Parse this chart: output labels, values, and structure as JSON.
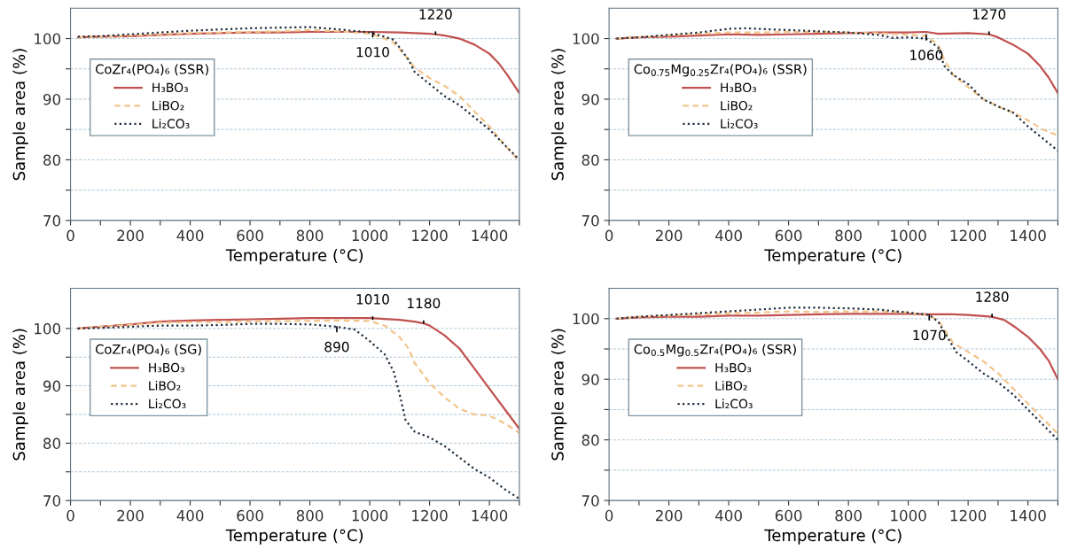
{
  "chart_data": [
    {
      "type": "line",
      "xlabel": "Temperature (°C)",
      "ylabel": "Sample area (%)",
      "legend_title": "CoZr₄(PO₄)₆ (SSR)",
      "legend": "center left",
      "grid": "y",
      "xlim": [
        0,
        1500
      ],
      "ylim": [
        70,
        105
      ],
      "xticks": [
        0,
        {
          "value": 100,
          "label": null
        },
        200,
        {
          "value": 300,
          "label": null
        },
        400,
        {
          "value": 500,
          "label": null
        },
        600,
        {
          "value": 700,
          "label": null
        },
        800,
        {
          "value": 900,
          "label": null
        },
        1000,
        {
          "value": 1100,
          "label": null
        },
        1200,
        {
          "value": 1300,
          "label": null
        },
        1400,
        {
          "value": 1500,
          "label": null
        }
      ],
      "yticks": [
        70,
        {
          "value": 75,
          "label": null
        },
        80,
        {
          "value": 85,
          "label": null
        },
        90,
        {
          "value": 95,
          "label": null
        },
        100
      ],
      "annotations": [
        {
          "text": "1010",
          "x": 1010,
          "y": 101.1
        },
        {
          "text": "1220",
          "x": 1220,
          "y": 100.7
        }
      ],
      "series": [
        {
          "name": "H₃BO₃",
          "color": "#c0504d",
          "line_style": "solid",
          "x": [
            25,
            100,
            200,
            300,
            400,
            500,
            600,
            700,
            800,
            900,
            1000,
            1100,
            1200,
            1220,
            1250,
            1300,
            1350,
            1400,
            1430,
            1460,
            1480,
            1500
          ],
          "values": [
            100.2,
            100.3,
            100.4,
            100.6,
            100.8,
            100.9,
            101.0,
            101.0,
            101.1,
            101.1,
            101.1,
            101.0,
            100.8,
            100.7,
            100.5,
            100.0,
            99.0,
            97.5,
            96.0,
            94.0,
            92.5,
            91.0
          ]
        },
        {
          "name": "LiBO₂",
          "color": "#f2c48a",
          "line_style": "dashed",
          "x": [
            25,
            100,
            200,
            300,
            400,
            500,
            600,
            700,
            800,
            900,
            1000,
            1050,
            1080,
            1100,
            1130,
            1150,
            1200,
            1250,
            1300,
            1350,
            1400,
            1450,
            1500
          ],
          "values": [
            100.2,
            100.3,
            100.5,
            100.7,
            100.9,
            101.0,
            101.1,
            101.2,
            101.4,
            101.2,
            100.8,
            100.0,
            99.3,
            98.3,
            96.5,
            95.2,
            93.5,
            92.2,
            90.5,
            88.0,
            85.5,
            82.5,
            79.8
          ]
        },
        {
          "name": "Li₂CO₃",
          "color": "#1f2d3d",
          "line_style": "dotted",
          "x": [
            25,
            100,
            200,
            300,
            400,
            500,
            600,
            700,
            800,
            900,
            1000,
            1050,
            1080,
            1100,
            1130,
            1150,
            1200,
            1250,
            1300,
            1350,
            1400,
            1450,
            1500
          ],
          "values": [
            100.3,
            100.4,
            100.7,
            101.0,
            101.3,
            101.5,
            101.7,
            101.8,
            101.9,
            101.5,
            101.0,
            100.3,
            99.8,
            98.5,
            96.5,
            94.5,
            92.5,
            90.5,
            89.0,
            87.0,
            85.0,
            82.5,
            80.0
          ]
        }
      ]
    },
    {
      "type": "line",
      "xlabel": "Temperature (°C)",
      "ylabel": "Sample area (%)",
      "legend_title": "Co$_{0.75}$Mg$_{0.25}$Zr₄(PO₄)₆ (SSR)",
      "legend": "center left",
      "grid": "y",
      "xlim": [
        0,
        1500
      ],
      "ylim": [
        70,
        105
      ],
      "xticks": [
        0,
        {
          "value": 100,
          "label": null
        },
        200,
        {
          "value": 300,
          "label": null
        },
        400,
        {
          "value": 500,
          "label": null
        },
        600,
        {
          "value": 700,
          "label": null
        },
        800,
        {
          "value": 900,
          "label": null
        },
        1000,
        {
          "value": 1100,
          "label": null
        },
        1200,
        {
          "value": 1300,
          "label": null
        },
        1400,
        {
          "value": 1500,
          "label": null
        }
      ],
      "yticks": [
        70,
        {
          "value": 75,
          "label": null
        },
        80,
        {
          "value": 85,
          "label": null
        },
        90,
        {
          "value": 95,
          "label": null
        },
        100
      ],
      "annotations": [
        {
          "text": "1060",
          "x": 1060,
          "y": 100.6
        },
        {
          "text": "1270",
          "x": 1270,
          "y": 100.7
        }
      ],
      "series": [
        {
          "name": "H₃BO₃",
          "color": "#c0504d",
          "line_style": "solid",
          "x": [
            25,
            100,
            200,
            300,
            400,
            500,
            600,
            700,
            800,
            900,
            1000,
            1060,
            1100,
            1200,
            1270,
            1300,
            1350,
            1400,
            1440,
            1470,
            1500
          ],
          "values": [
            100.0,
            100.2,
            100.3,
            100.5,
            100.7,
            100.6,
            100.7,
            100.8,
            100.9,
            101.0,
            101.0,
            101.1,
            100.8,
            100.9,
            100.7,
            100.2,
            99.0,
            97.5,
            95.5,
            93.5,
            91.0
          ]
        },
        {
          "name": "LiBO₂",
          "color": "#f2c48a",
          "line_style": "dashed",
          "x": [
            25,
            100,
            200,
            300,
            400,
            500,
            600,
            700,
            800,
            900,
            1000,
            1060,
            1100,
            1120,
            1150,
            1200,
            1250,
            1300,
            1350,
            1400,
            1450,
            1500
          ],
          "values": [
            100.0,
            100.2,
            100.5,
            100.8,
            101.0,
            101.0,
            101.1,
            101.1,
            101.0,
            100.9,
            100.6,
            100.4,
            99.0,
            96.5,
            94.0,
            92.0,
            90.0,
            88.8,
            87.8,
            86.5,
            85.0,
            84.0
          ]
        },
        {
          "name": "Li₂CO₃",
          "color": "#1f2d3d",
          "line_style": "dotted",
          "x": [
            25,
            100,
            200,
            300,
            400,
            450,
            500,
            600,
            700,
            800,
            900,
            950,
            1000,
            1060,
            1100,
            1120,
            1150,
            1200,
            1250,
            1300,
            1350,
            1400,
            1450,
            1500
          ],
          "values": [
            100.0,
            100.2,
            100.6,
            101.0,
            101.6,
            101.7,
            101.6,
            101.4,
            101.2,
            101.0,
            100.6,
            100.1,
            100.2,
            100.0,
            98.5,
            95.5,
            94.0,
            92.5,
            90.0,
            88.8,
            87.8,
            85.5,
            83.5,
            81.5
          ]
        }
      ]
    },
    {
      "type": "line",
      "xlabel": "Temperature (°C)",
      "ylabel": "Sample area (%)",
      "legend_title": "CoZr₄(PO₄)₆ (SG)",
      "legend": "center left",
      "grid": "y",
      "xlim": [
        0,
        1500
      ],
      "ylim": [
        70,
        107
      ],
      "xticks": [
        0,
        {
          "value": 100,
          "label": null
        },
        200,
        {
          "value": 300,
          "label": null
        },
        400,
        {
          "value": 500,
          "label": null
        },
        600,
        {
          "value": 700,
          "label": null
        },
        800,
        {
          "value": 900,
          "label": null
        },
        1000,
        {
          "value": 1100,
          "label": null
        },
        1200,
        {
          "value": 1300,
          "label": null
        },
        1400,
        {
          "value": 1500,
          "label": null
        }
      ],
      "yticks": [
        70,
        {
          "value": 75,
          "label": null
        },
        80,
        {
          "value": 85,
          "label": null
        },
        90,
        {
          "value": 95,
          "label": null
        },
        100
      ],
      "annotations": [
        {
          "text": "890",
          "x": 890,
          "y": 100.3
        },
        {
          "text": "1010",
          "x": 1010,
          "y": 101.6
        },
        {
          "text": "1180",
          "x": 1180,
          "y": 100.9
        }
      ],
      "series": [
        {
          "name": "H₃BO₃",
          "color": "#c0504d",
          "line_style": "solid",
          "x": [
            25,
            100,
            200,
            300,
            400,
            500,
            600,
            700,
            800,
            900,
            1000,
            1100,
            1150,
            1180,
            1200,
            1250,
            1300,
            1350,
            1400,
            1450,
            1500
          ],
          "values": [
            100.0,
            100.3,
            100.7,
            101.2,
            101.4,
            101.5,
            101.6,
            101.7,
            101.8,
            101.8,
            101.8,
            101.5,
            101.2,
            100.9,
            100.5,
            98.8,
            96.5,
            93.0,
            89.5,
            86.0,
            82.5
          ]
        },
        {
          "name": "LiBO₂",
          "color": "#f2c48a",
          "line_style": "dashed",
          "x": [
            25,
            100,
            200,
            300,
            400,
            500,
            600,
            700,
            800,
            900,
            1000,
            1050,
            1100,
            1130,
            1150,
            1200,
            1250,
            1300,
            1350,
            1400,
            1450,
            1500
          ],
          "values": [
            100.0,
            100.3,
            100.6,
            101.0,
            101.1,
            101.1,
            101.2,
            101.3,
            101.3,
            101.4,
            101.3,
            100.5,
            98.5,
            96.5,
            94.0,
            90.5,
            88.0,
            86.0,
            85.0,
            84.8,
            83.5,
            81.8
          ]
        },
        {
          "name": "Li₂CO₃",
          "color": "#1f2d3d",
          "line_style": "dotted",
          "x": [
            25,
            100,
            200,
            300,
            400,
            500,
            600,
            700,
            800,
            890,
            950,
            1000,
            1050,
            1080,
            1100,
            1120,
            1150,
            1200,
            1250,
            1300,
            1350,
            1400,
            1450,
            1500
          ],
          "values": [
            100.0,
            100.1,
            100.3,
            100.5,
            100.5,
            100.6,
            100.8,
            100.8,
            100.7,
            100.3,
            99.8,
            97.8,
            95.5,
            92.5,
            88.5,
            84.0,
            82.0,
            81.0,
            79.5,
            77.5,
            75.5,
            74.0,
            72.0,
            70.3
          ]
        }
      ]
    },
    {
      "type": "line",
      "xlabel": "Temperature (°C)",
      "ylabel": "Sample area (%)",
      "legend_title": "Co$_{0.5}$Mg$_{0.5}$Zr₄(PO₄)₆ (SSR)",
      "legend": "center left",
      "grid": "y",
      "xlim": [
        0,
        1500
      ],
      "ylim": [
        70,
        105
      ],
      "xticks": [
        0,
        {
          "value": 100,
          "label": null
        },
        200,
        {
          "value": 300,
          "label": null
        },
        400,
        {
          "value": 500,
          "label": null
        },
        600,
        {
          "value": 700,
          "label": null
        },
        800,
        {
          "value": 900,
          "label": null
        },
        1000,
        {
          "value": 1100,
          "label": null
        },
        1200,
        {
          "value": 1300,
          "label": null
        },
        1400,
        {
          "value": 1500,
          "label": null
        }
      ],
      "yticks": [
        70,
        {
          "value": 75,
          "label": null
        },
        80,
        {
          "value": 85,
          "label": null
        },
        90,
        {
          "value": 95,
          "label": null
        },
        100
      ],
      "annotations": [
        {
          "text": "1070",
          "x": 1070,
          "y": 100.6
        },
        {
          "text": "1280",
          "x": 1280,
          "y": 100.3
        }
      ],
      "series": [
        {
          "name": "H₃BO₃",
          "color": "#c0504d",
          "line_style": "solid",
          "x": [
            25,
            100,
            200,
            300,
            400,
            500,
            600,
            700,
            800,
            900,
            1000,
            1070,
            1150,
            1200,
            1280,
            1320,
            1360,
            1400,
            1440,
            1470,
            1500
          ],
          "values": [
            100.0,
            100.2,
            100.3,
            100.3,
            100.5,
            100.5,
            100.6,
            100.7,
            100.8,
            100.8,
            100.8,
            100.7,
            100.7,
            100.6,
            100.3,
            99.8,
            98.5,
            97.0,
            95.0,
            93.0,
            90.0
          ]
        },
        {
          "name": "LiBO₂",
          "color": "#f2c48a",
          "line_style": "dashed",
          "x": [
            25,
            100,
            200,
            300,
            400,
            500,
            600,
            700,
            800,
            900,
            1000,
            1070,
            1100,
            1130,
            1150,
            1200,
            1250,
            1300,
            1350,
            1400,
            1450,
            1500
          ],
          "values": [
            100.0,
            100.3,
            100.5,
            100.7,
            100.9,
            101.0,
            101.2,
            101.1,
            101.2,
            101.2,
            101.0,
            100.5,
            99.7,
            97.5,
            96.0,
            94.5,
            93.0,
            91.0,
            88.5,
            86.0,
            83.5,
            81.0
          ]
        },
        {
          "name": "Li₂CO₃",
          "color": "#1f2d3d",
          "line_style": "dotted",
          "x": [
            25,
            100,
            200,
            300,
            400,
            500,
            600,
            700,
            800,
            900,
            1000,
            1070,
            1100,
            1130,
            1160,
            1200,
            1250,
            1300,
            1350,
            1400,
            1450,
            1500
          ],
          "values": [
            100.0,
            100.3,
            100.6,
            100.9,
            101.2,
            101.5,
            101.8,
            101.8,
            101.7,
            101.5,
            101.0,
            100.6,
            99.5,
            97.0,
            94.5,
            93.0,
            91.0,
            89.5,
            87.5,
            85.0,
            82.5,
            80.0
          ]
        }
      ]
    }
  ]
}
